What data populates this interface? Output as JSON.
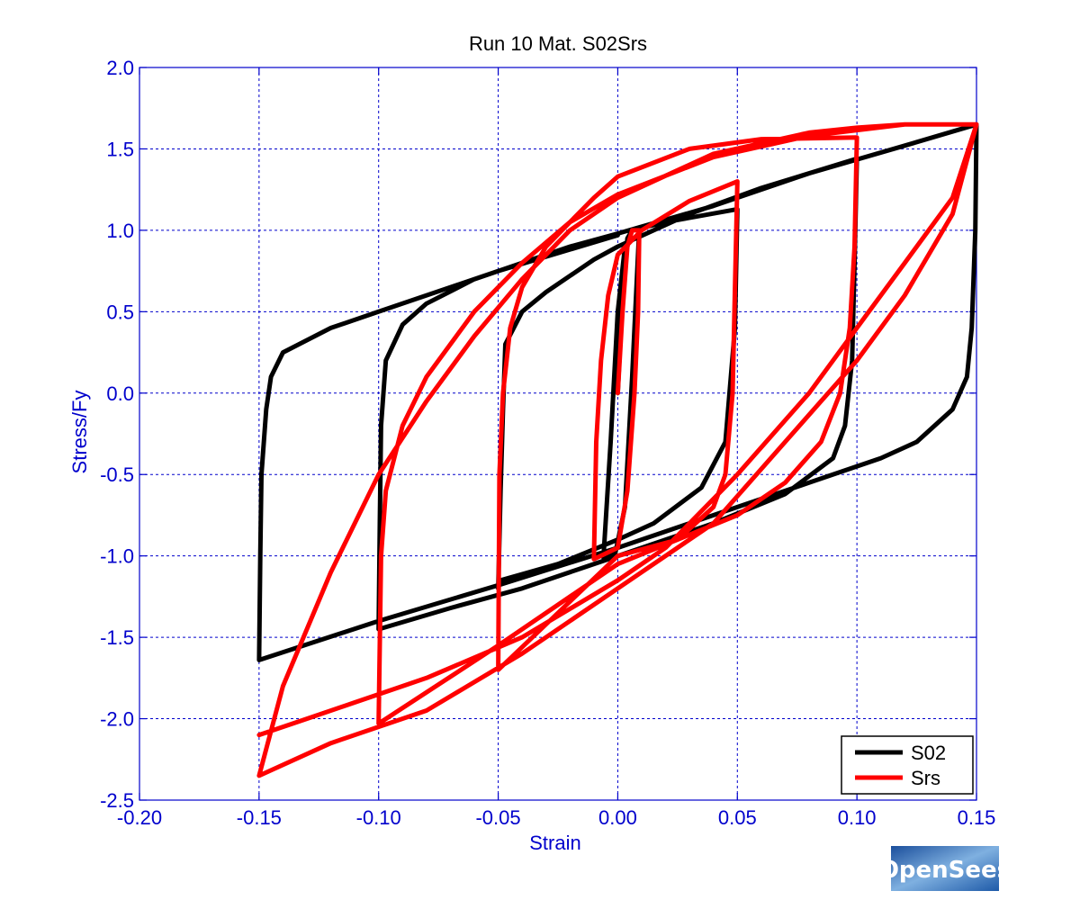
{
  "chart_data": {
    "type": "line",
    "title": "Run 10    Mat. S02Srs",
    "xlabel": "Strain",
    "ylabel": "Stress/Fy",
    "xlim": [
      -0.2,
      0.15
    ],
    "ylim": [
      -2.5,
      2.0
    ],
    "xticks": [
      -0.2,
      -0.15,
      -0.1,
      -0.05,
      0.0,
      0.05,
      0.1,
      0.15
    ],
    "xtick_labels": [
      "-0.20",
      "-0.15",
      "-0.10",
      "-0.05",
      "0.00",
      "0.05",
      "0.10",
      "0.15"
    ],
    "yticks": [
      -2.5,
      -2.0,
      -1.5,
      -1.0,
      -0.5,
      0.0,
      0.5,
      1.0,
      1.5,
      2.0
    ],
    "ytick_labels": [
      "-2.5",
      "-2.0",
      "-1.5",
      "-1.0",
      "-0.5",
      "0.0",
      "0.5",
      "1.0",
      "1.5",
      "2.0"
    ],
    "grid": true,
    "legend_position": "bottom-right",
    "series": [
      {
        "name": "S02",
        "color": "#000000",
        "points": [
          [
            0,
            0
          ],
          [
            0.002,
            0.6
          ],
          [
            0.004,
            0.95
          ],
          [
            0.006,
            1.0
          ],
          [
            0.009,
            1.01
          ],
          [
            0.006,
            0.1
          ],
          [
            0.003,
            -0.7
          ],
          [
            -0.001,
            -0.98
          ],
          [
            -0.004,
            -1.0
          ],
          [
            -0.006,
            -1.01
          ],
          [
            -0.003,
            -0.3
          ],
          [
            0.0,
            0.5
          ],
          [
            0.003,
            0.9
          ],
          [
            0.006,
            1.0
          ],
          [
            0.02,
            1.05
          ],
          [
            0.05,
            1.13
          ],
          [
            0.049,
            0.4
          ],
          [
            0.045,
            -0.3
          ],
          [
            0.035,
            -0.58
          ],
          [
            0.015,
            -0.8
          ],
          [
            0.0,
            -0.9
          ],
          [
            -0.025,
            -1.05
          ],
          [
            -0.049,
            -1.15
          ],
          [
            -0.05,
            -1.2
          ],
          [
            -0.049,
            -0.6
          ],
          [
            -0.048,
            -0.1
          ],
          [
            -0.047,
            0.3
          ],
          [
            -0.04,
            0.5
          ],
          [
            -0.03,
            0.62
          ],
          [
            -0.01,
            0.82
          ],
          [
            0.0,
            0.9
          ],
          [
            0.03,
            1.1
          ],
          [
            0.06,
            1.26
          ],
          [
            0.1,
            1.44
          ],
          [
            0.099,
            0.8
          ],
          [
            0.098,
            0.2
          ],
          [
            0.095,
            -0.2
          ],
          [
            0.09,
            -0.4
          ],
          [
            0.07,
            -0.62
          ],
          [
            0.04,
            -0.8
          ],
          [
            0.0,
            -1.0
          ],
          [
            -0.04,
            -1.2
          ],
          [
            -0.07,
            -1.32
          ],
          [
            -0.1,
            -1.45
          ],
          [
            -0.0995,
            -0.8
          ],
          [
            -0.099,
            -0.2
          ],
          [
            -0.097,
            0.2
          ],
          [
            -0.09,
            0.42
          ],
          [
            -0.08,
            0.55
          ],
          [
            -0.06,
            0.7
          ],
          [
            -0.04,
            0.8
          ],
          [
            -0.02,
            0.9
          ],
          [
            0.0,
            0.98
          ],
          [
            0.04,
            1.15
          ],
          [
            0.08,
            1.35
          ],
          [
            0.12,
            1.52
          ],
          [
            0.15,
            1.65
          ],
          [
            0.1495,
            1.0
          ],
          [
            0.148,
            0.4
          ],
          [
            0.146,
            0.1
          ],
          [
            0.14,
            -0.1
          ],
          [
            0.125,
            -0.3
          ],
          [
            0.11,
            -0.4
          ],
          [
            0.08,
            -0.55
          ],
          [
            0.05,
            -0.7
          ],
          [
            0.02,
            -0.85
          ],
          [
            0.0,
            -0.95
          ],
          [
            -0.05,
            -1.18
          ],
          [
            -0.1,
            -1.4
          ],
          [
            -0.15,
            -1.64
          ],
          [
            -0.1495,
            -1.0
          ],
          [
            -0.149,
            -0.5
          ],
          [
            -0.147,
            -0.1
          ],
          [
            -0.145,
            0.1
          ],
          [
            -0.14,
            0.25
          ],
          [
            -0.12,
            0.4
          ],
          [
            -0.1,
            0.5
          ],
          [
            -0.05,
            0.75
          ],
          [
            0.0,
            0.97
          ]
        ]
      },
      {
        "name": "Srs",
        "color": "#ff0000",
        "points": [
          [
            0,
            0
          ],
          [
            0.002,
            0.5
          ],
          [
            0.004,
            0.9
          ],
          [
            0.006,
            1.0
          ],
          [
            0.009,
            1.0
          ],
          [
            0.0085,
            0.5
          ],
          [
            0.007,
            0.0
          ],
          [
            0.004,
            -0.6
          ],
          [
            0.0,
            -0.95
          ],
          [
            -0.01,
            -1.02
          ],
          [
            -0.009,
            -0.3
          ],
          [
            -0.007,
            0.2
          ],
          [
            -0.004,
            0.6
          ],
          [
            0.0,
            0.85
          ],
          [
            0.01,
            1.0
          ],
          [
            0.03,
            1.18
          ],
          [
            0.05,
            1.3
          ],
          [
            0.048,
            0.0
          ],
          [
            0.045,
            -0.5
          ],
          [
            0.04,
            -0.7
          ],
          [
            0.025,
            -0.9
          ],
          [
            0.0,
            -1.0
          ],
          [
            -0.025,
            -1.35
          ],
          [
            -0.05,
            -1.7
          ],
          [
            -0.0495,
            -0.5
          ],
          [
            -0.048,
            0.0
          ],
          [
            -0.045,
            0.4
          ],
          [
            -0.04,
            0.65
          ],
          [
            -0.03,
            0.9
          ],
          [
            -0.01,
            1.2
          ],
          [
            0.0,
            1.33
          ],
          [
            0.03,
            1.5
          ],
          [
            0.06,
            1.56
          ],
          [
            0.1,
            1.57
          ],
          [
            0.099,
            0.9
          ],
          [
            0.097,
            0.4
          ],
          [
            0.093,
            0.0
          ],
          [
            0.085,
            -0.3
          ],
          [
            0.07,
            -0.55
          ],
          [
            0.05,
            -0.75
          ],
          [
            0.0,
            -1.05
          ],
          [
            -0.05,
            -1.55
          ],
          [
            -0.1,
            -2.03
          ],
          [
            -0.099,
            -1.0
          ],
          [
            -0.097,
            -0.6
          ],
          [
            -0.09,
            -0.2
          ],
          [
            -0.08,
            0.1
          ],
          [
            -0.06,
            0.5
          ],
          [
            -0.04,
            0.8
          ],
          [
            -0.02,
            1.05
          ],
          [
            0.0,
            1.22
          ],
          [
            0.04,
            1.45
          ],
          [
            0.08,
            1.58
          ],
          [
            0.12,
            1.65
          ],
          [
            0.15,
            1.65
          ],
          [
            0.14,
            1.1
          ],
          [
            0.12,
            0.6
          ],
          [
            0.1,
            0.2
          ],
          [
            0.07,
            -0.3
          ],
          [
            0.04,
            -0.8
          ],
          [
            0.0,
            -1.2
          ],
          [
            -0.04,
            -1.6
          ],
          [
            -0.08,
            -1.95
          ],
          [
            -0.12,
            -2.15
          ],
          [
            -0.15,
            -2.35
          ],
          [
            -0.14,
            -1.8
          ],
          [
            -0.12,
            -1.1
          ],
          [
            -0.1,
            -0.5
          ],
          [
            -0.08,
            -0.05
          ],
          [
            -0.06,
            0.35
          ],
          [
            -0.04,
            0.7
          ],
          [
            -0.02,
            1.0
          ],
          [
            0.0,
            1.2
          ],
          [
            0.04,
            1.47
          ],
          [
            0.08,
            1.6
          ],
          [
            0.1,
            1.63
          ],
          [
            0.12,
            1.65
          ],
          [
            0.15,
            1.65
          ],
          [
            0.14,
            1.2
          ],
          [
            0.12,
            0.8
          ],
          [
            0.1,
            0.4
          ],
          [
            0.08,
            0.0
          ],
          [
            0.05,
            -0.5
          ],
          [
            0.02,
            -0.95
          ],
          [
            0.0,
            -1.15
          ],
          [
            -0.04,
            -1.5
          ],
          [
            -0.08,
            -1.75
          ],
          [
            -0.11,
            -1.9
          ],
          [
            -0.13,
            -2.0
          ],
          [
            -0.15,
            -2.1
          ]
        ]
      }
    ],
    "watermark": "OpenSees"
  },
  "colors": {
    "axis": "#0000cc",
    "grid": "#0000cc",
    "background": "#ffffff"
  }
}
